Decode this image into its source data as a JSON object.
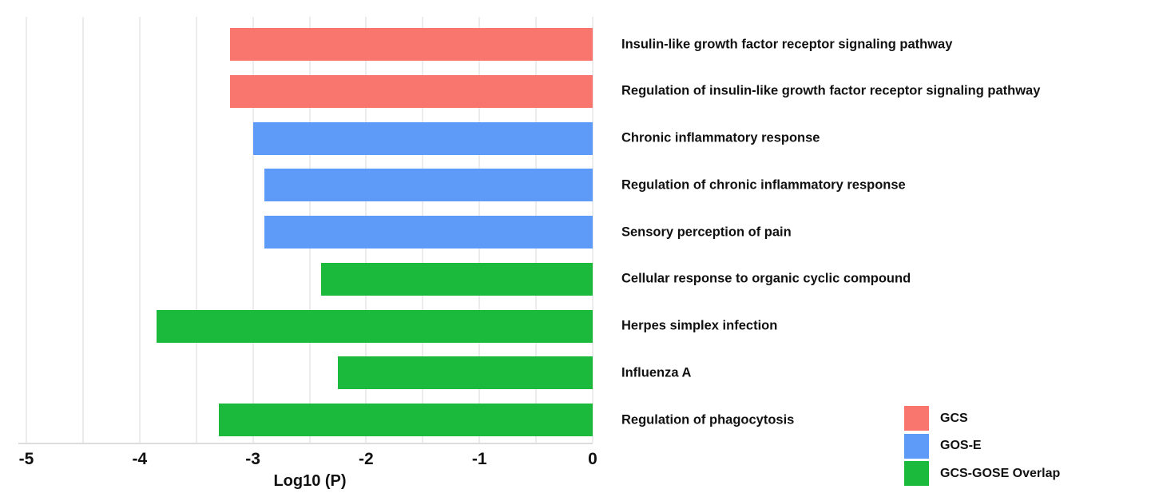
{
  "chart_data": {
    "type": "bar",
    "orientation": "horizontal",
    "xlabel": "Log10 (P)",
    "xlim": [
      -5,
      0
    ],
    "x_ticks": [
      "-5",
      "-4",
      "-3",
      "-2",
      "-1",
      "0"
    ],
    "gridline_step": 0.5,
    "grid": true,
    "categories": [
      "Insulin-like growth factor receptor signaling pathway",
      "Regulation of insulin-like growth factor receptor signaling pathway",
      "Chronic inflammatory response",
      "Regulation of chronic inflammatory response",
      "Sensory perception of pain",
      "Cellular response to organic cyclic compound",
      "Herpes simplex infection",
      "Influenza A",
      "Regulation of phagocytosis"
    ],
    "values": [
      -3.2,
      -3.2,
      -3.0,
      -2.9,
      -2.9,
      -2.4,
      -3.85,
      -2.25,
      -3.3
    ],
    "groups": [
      "GCS",
      "GCS",
      "GOS-E",
      "GOS-E",
      "GOS-E",
      "GCS-GOSE Overlap",
      "GCS-GOSE Overlap",
      "GCS-GOSE Overlap",
      "GCS-GOSE Overlap"
    ],
    "legend": {
      "position": "bottom-right",
      "entries": [
        {
          "label": "GCS",
          "color": "#F8766D"
        },
        {
          "label": "GOS-E",
          "color": "#5E9BF9"
        },
        {
          "label": "GCS-GOSE Overlap",
          "color": "#1BB93C"
        }
      ]
    }
  }
}
